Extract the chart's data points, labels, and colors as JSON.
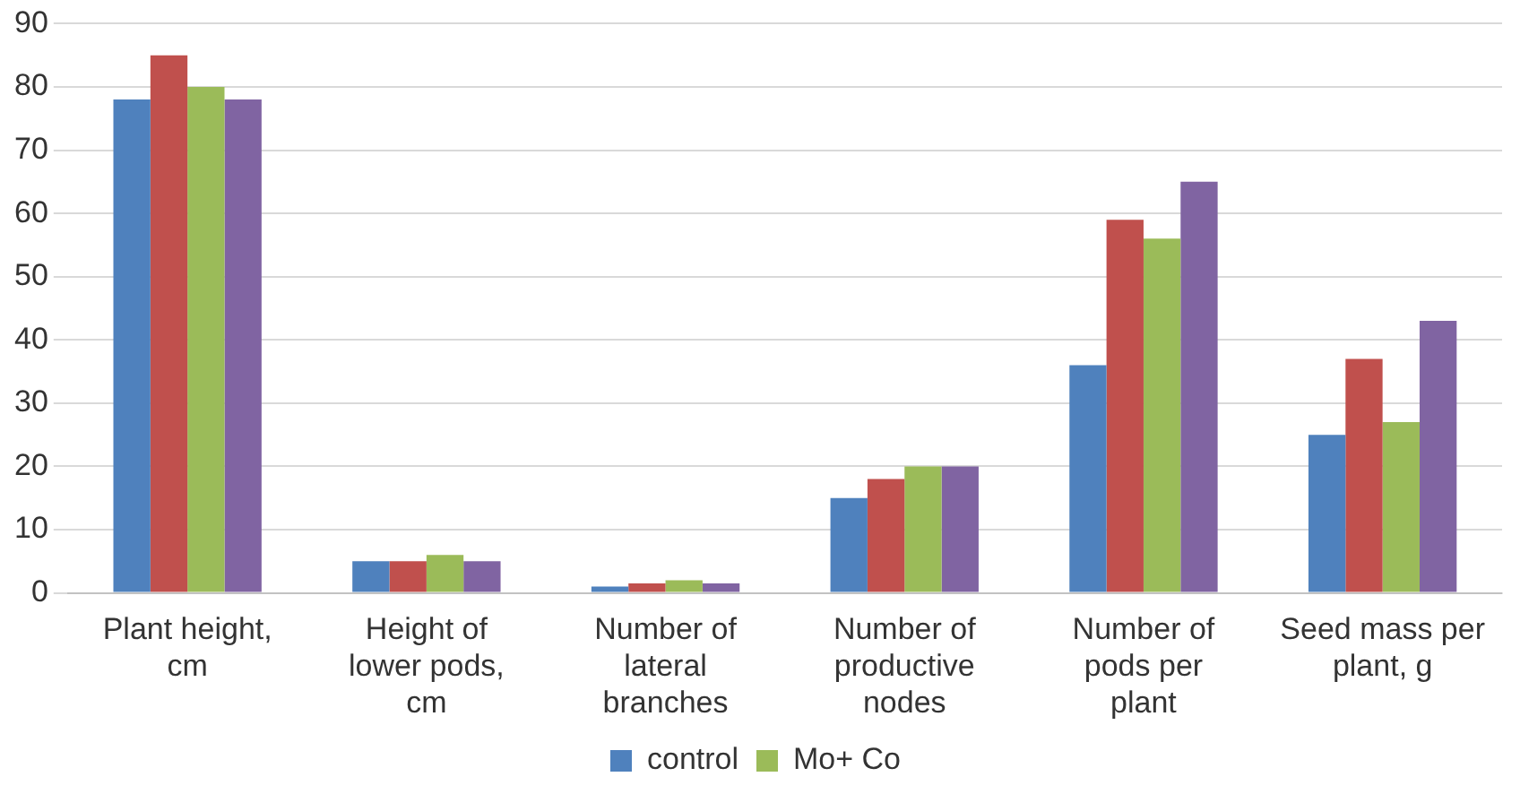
{
  "chart_data": {
    "type": "bar",
    "categories": [
      "Plant height, cm",
      "Height of lower pods, cm",
      "Number of lateral branches",
      "Number of productive nodes",
      "Number of pods per plant",
      "Seed mass per plant, g"
    ],
    "series": [
      {
        "name": "control",
        "color": "#4f81bd",
        "values": [
          78,
          5,
          1,
          15,
          36,
          25
        ]
      },
      {
        "color": "#c0504d",
        "values": [
          85,
          5,
          1.5,
          18,
          59,
          37
        ]
      },
      {
        "name": "Mo+ Co",
        "color": "#9bbb59",
        "values": [
          80,
          6,
          2,
          20,
          56,
          27
        ]
      },
      {
        "color": "#8064a2",
        "values": [
          78,
          5,
          1.5,
          20,
          65,
          43
        ]
      }
    ],
    "ylim": [
      0,
      90
    ],
    "yticks": [
      0,
      10,
      20,
      30,
      40,
      50,
      60,
      70,
      80,
      90
    ],
    "grid": "y",
    "legend": "bottom"
  }
}
